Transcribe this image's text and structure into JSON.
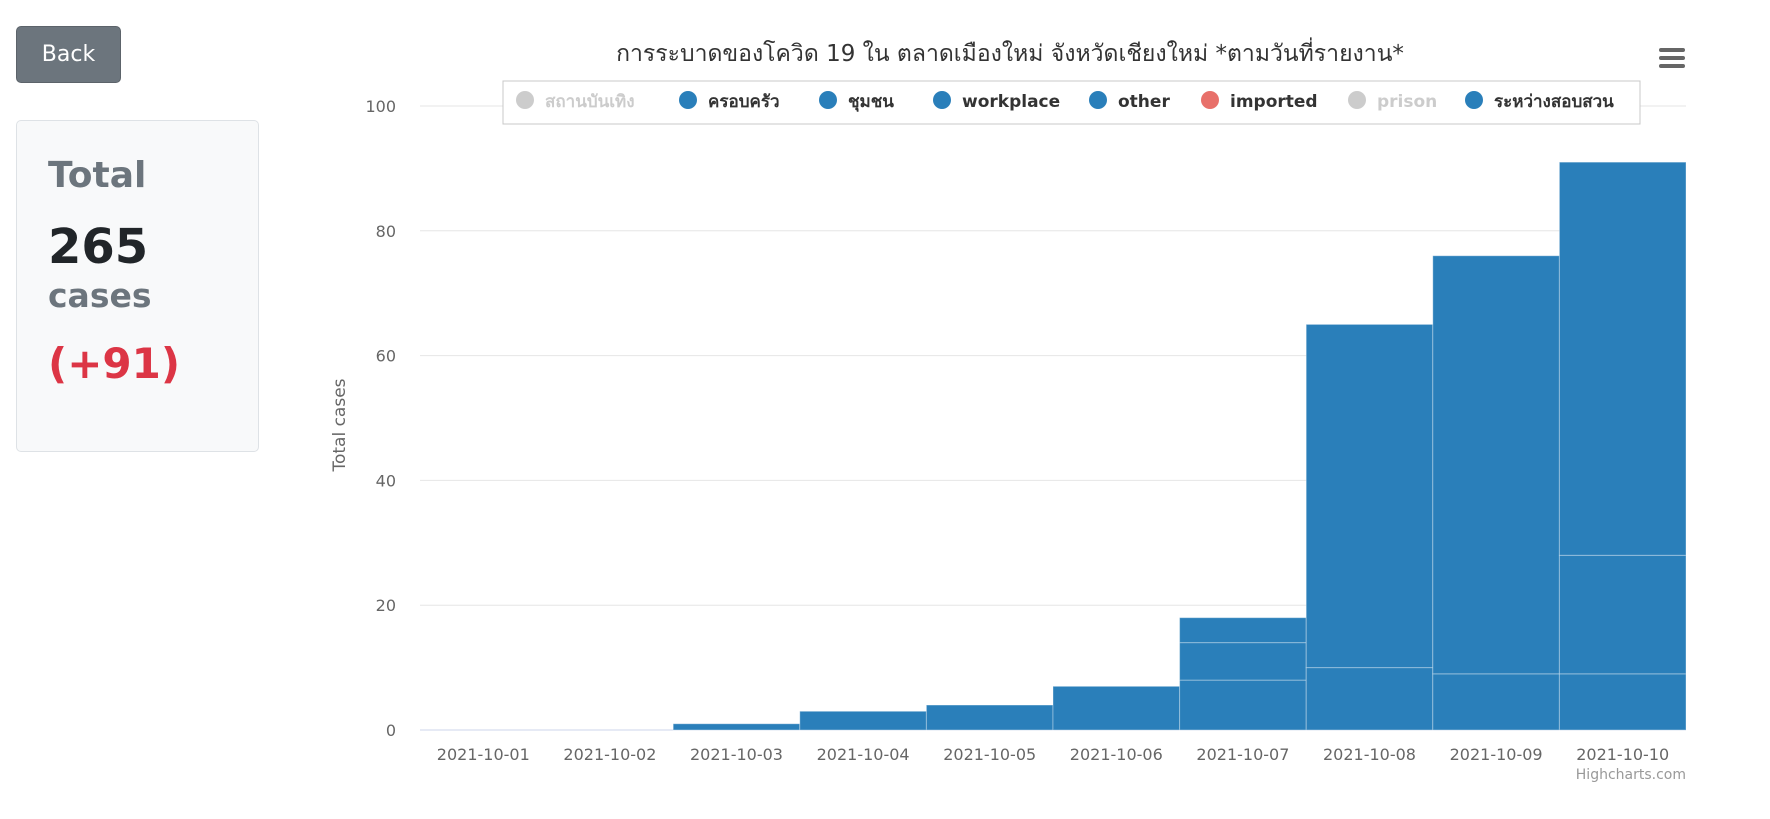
{
  "back_button": {
    "label": "Back"
  },
  "summary": {
    "label": "Total",
    "value": "265",
    "unit": "cases",
    "delta": "(+91)"
  },
  "credits": "Highcharts.com",
  "colors": {
    "series": "#2a7fba",
    "imported": "#e8706a",
    "hidden": "#cccccc",
    "gridline": "#e6e6e6"
  },
  "chart_data": {
    "type": "bar",
    "stacked": true,
    "title": "การระบาดของโควิด 19 ใน ตลาดเมืองใหม่ จังหวัดเชียงใหม่ *ตามวันที่รายงาน*",
    "xlabel": "",
    "ylabel": "Total cases",
    "ylim": [
      0,
      100
    ],
    "yticks": [
      0,
      20,
      40,
      60,
      80,
      100
    ],
    "grid": true,
    "legend_position": "top",
    "categories": [
      "2021-10-01",
      "2021-10-02",
      "2021-10-03",
      "2021-10-04",
      "2021-10-05",
      "2021-10-06",
      "2021-10-07",
      "2021-10-08",
      "2021-10-09",
      "2021-10-10"
    ],
    "legend": [
      {
        "name": "สถานบันเทิง",
        "visible": false
      },
      {
        "name": "ครอบครัว",
        "visible": true
      },
      {
        "name": "ชุมชน",
        "visible": true
      },
      {
        "name": "workplace",
        "visible": true
      },
      {
        "name": "other",
        "visible": true
      },
      {
        "name": "imported",
        "visible": true
      },
      {
        "name": "prison",
        "visible": false
      },
      {
        "name": "ระหว่างสอบสวน",
        "visible": true
      }
    ],
    "series": [
      {
        "name": "ครอบครัว",
        "values": [
          0,
          0,
          1,
          3,
          4,
          7,
          8,
          10,
          9,
          9
        ]
      },
      {
        "name": "ชุมชน",
        "values": [
          0,
          0,
          0,
          0,
          0,
          0,
          6,
          0,
          0,
          19
        ]
      },
      {
        "name": "ระหว่างสอบสวน",
        "values": [
          0,
          0,
          0,
          0,
          0,
          0,
          4,
          55,
          67,
          63
        ]
      }
    ]
  }
}
